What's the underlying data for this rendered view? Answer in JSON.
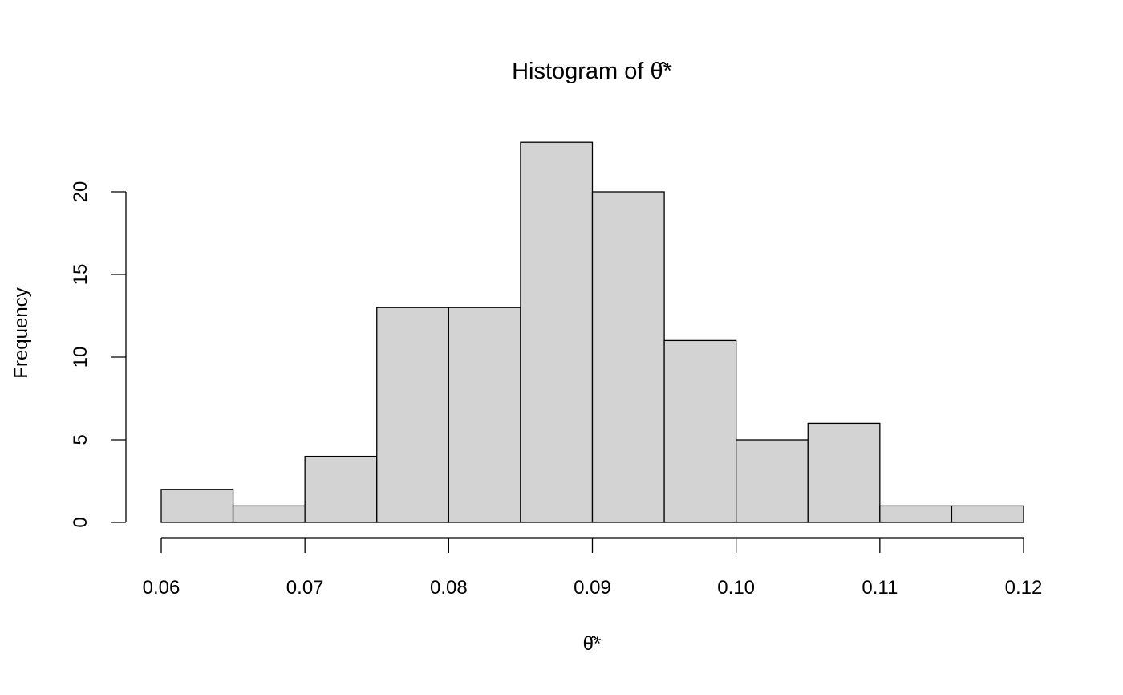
{
  "chart_data": {
    "type": "bar",
    "title": "Histogram of θ̂*",
    "xlabel": "θ̂*",
    "ylabel": "Frequency",
    "bin_edges": [
      0.06,
      0.065,
      0.07,
      0.075,
      0.08,
      0.085,
      0.09,
      0.095,
      0.1,
      0.105,
      0.11,
      0.115,
      0.12
    ],
    "values": [
      2,
      1,
      4,
      13,
      13,
      23,
      20,
      11,
      5,
      6,
      1,
      1
    ],
    "xlim": [
      0.06,
      0.12
    ],
    "ylim": [
      0,
      23
    ],
    "x_ticks": [
      0.06,
      0.07,
      0.08,
      0.09,
      0.1,
      0.11,
      0.12
    ],
    "x_tick_labels": [
      "0.06",
      "0.07",
      "0.08",
      "0.09",
      "0.10",
      "0.11",
      "0.12"
    ],
    "y_ticks": [
      0,
      5,
      10,
      15,
      20
    ],
    "y_tick_labels": [
      "0",
      "5",
      "10",
      "15",
      "20"
    ],
    "bar_color": "#d3d3d3",
    "grid": false
  }
}
